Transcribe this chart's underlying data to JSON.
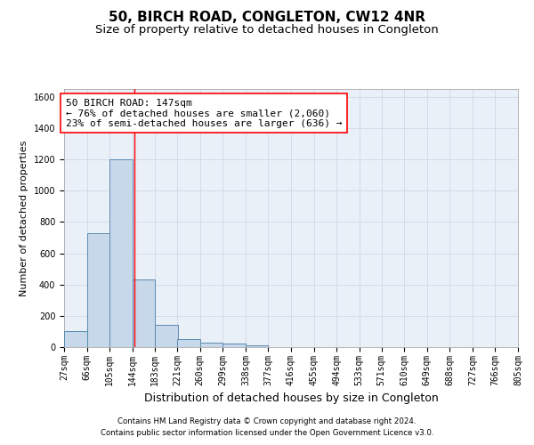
{
  "title": "50, BIRCH ROAD, CONGLETON, CW12 4NR",
  "subtitle": "Size of property relative to detached houses in Congleton",
  "xlabel": "Distribution of detached houses by size in Congleton",
  "ylabel": "Number of detached properties",
  "footnote1": "Contains HM Land Registry data © Crown copyright and database right 2024.",
  "footnote2": "Contains public sector information licensed under the Open Government Licence v3.0.",
  "bar_left_edges": [
    27,
    66,
    105,
    144,
    183,
    221,
    260,
    299,
    338,
    377,
    416,
    455,
    494,
    533,
    571,
    610,
    649,
    688,
    727,
    766
  ],
  "bar_heights": [
    100,
    730,
    1200,
    430,
    145,
    50,
    30,
    20,
    10,
    0,
    0,
    0,
    0,
    0,
    0,
    0,
    0,
    0,
    0,
    0
  ],
  "bin_width": 39,
  "bar_color": "#c8d8eb",
  "bar_edge_color": "#5a8ab0",
  "ylim": [
    0,
    1650
  ],
  "yticks": [
    0,
    200,
    400,
    600,
    800,
    1000,
    1200,
    1400,
    1600
  ],
  "xtick_labels": [
    "27sqm",
    "66sqm",
    "105sqm",
    "144sqm",
    "183sqm",
    "221sqm",
    "260sqm",
    "299sqm",
    "338sqm",
    "377sqm",
    "416sqm",
    "455sqm",
    "494sqm",
    "533sqm",
    "571sqm",
    "610sqm",
    "649sqm",
    "688sqm",
    "727sqm",
    "766sqm",
    "805sqm"
  ],
  "red_line_x": 147,
  "annotation_line1": "50 BIRCH ROAD: 147sqm",
  "annotation_line2": "← 76% of detached houses are smaller (2,060)",
  "annotation_line3": "23% of semi-detached houses are larger (636) →",
  "grid_color": "#d0d8e8",
  "background_color": "#eaf0f8",
  "title_fontsize": 11,
  "subtitle_fontsize": 9.5,
  "annotation_fontsize": 8,
  "tick_fontsize": 7,
  "ylabel_fontsize": 8,
  "xlabel_fontsize": 9
}
